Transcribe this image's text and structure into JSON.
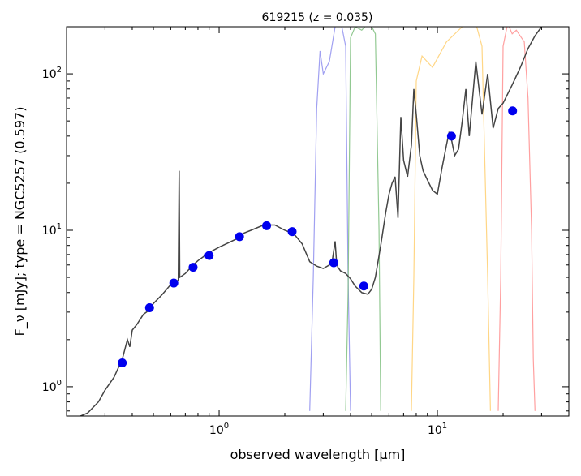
{
  "chart_data": {
    "type": "line",
    "title": "619215 (z = 0.035)",
    "xlabel": "observed wavelength [μm]",
    "ylabel": "F_ν [mJy];  type = NGC5257 (0.597)",
    "xscale": "log",
    "yscale": "log",
    "xlim": [
      0.2,
      40
    ],
    "ylim": [
      0.65,
      200
    ],
    "x_ticks": [
      {
        "value": 1,
        "label": "10^0"
      },
      {
        "value": 10,
        "label": "10^1"
      }
    ],
    "y_ticks": [
      {
        "value": 1,
        "label": "10^0"
      },
      {
        "value": 10,
        "label": "10^1"
      },
      {
        "value": 100,
        "label": "10^2"
      }
    ],
    "grid": false,
    "colors": {
      "sed": "#444444",
      "photometry": "#0000ee",
      "filter_blue": "#8888ee",
      "filter_green": "#77bb77",
      "filter_orange": "#ffcc66",
      "filter_red": "#ff8888"
    },
    "sed_template": {
      "x": [
        0.2,
        0.22,
        0.25,
        0.28,
        0.3,
        0.33,
        0.36,
        0.38,
        0.39,
        0.4,
        0.42,
        0.45,
        0.48,
        0.5,
        0.55,
        0.6,
        0.65,
        0.656,
        0.66,
        0.7,
        0.75,
        0.8,
        0.9,
        1.0,
        1.1,
        1.2,
        1.3,
        1.4,
        1.6,
        1.8,
        2.0,
        2.2,
        2.4,
        2.6,
        2.8,
        3.0,
        3.2,
        3.3,
        3.4,
        3.45,
        3.5,
        3.6,
        3.8,
        4.0,
        4.2,
        4.5,
        4.8,
        5.0,
        5.2,
        5.5,
        5.8,
        6.0,
        6.2,
        6.4,
        6.6,
        6.8,
        7.0,
        7.3,
        7.6,
        7.8,
        8.0,
        8.3,
        8.6,
        9.0,
        9.5,
        10.0,
        10.5,
        11.0,
        11.3,
        11.6,
        12.0,
        12.5,
        13.0,
        13.5,
        14.0,
        15.0,
        16.0,
        17.0,
        18.0,
        19.0,
        20.0,
        22.0,
        24.0,
        26.0,
        28.0,
        30.0
      ],
      "y": [
        0.62,
        0.63,
        0.68,
        0.8,
        0.95,
        1.15,
        1.5,
        2.0,
        1.8,
        2.3,
        2.5,
        2.9,
        3.1,
        3.4,
        3.9,
        4.5,
        4.8,
        24.0,
        5.0,
        5.3,
        5.9,
        6.4,
        7.2,
        7.8,
        8.3,
        8.8,
        9.6,
        10.0,
        10.8,
        10.8,
        10.0,
        9.5,
        8.2,
        6.3,
        5.9,
        5.7,
        6.0,
        6.4,
        8.5,
        6.3,
        5.8,
        5.5,
        5.3,
        4.9,
        4.4,
        4.0,
        3.9,
        4.2,
        5.0,
        8.0,
        13.0,
        17.0,
        20.0,
        22.0,
        12.0,
        53.0,
        28.0,
        22.0,
        35.0,
        80.0,
        55.0,
        30.0,
        24.0,
        21.0,
        18.0,
        17.0,
        25.0,
        35.0,
        42.0,
        38.0,
        30.0,
        33.0,
        50.0,
        80.0,
        40.0,
        120.0,
        55.0,
        100.0,
        45.0,
        60.0,
        65.0,
        85.0,
        110.0,
        145.0,
        175.0,
        200.0
      ]
    },
    "photometry": {
      "x": [
        0.36,
        0.48,
        0.62,
        0.76,
        0.9,
        1.24,
        1.65,
        2.16,
        3.35,
        4.6,
        11.6,
        22.1
      ],
      "y": [
        1.42,
        3.2,
        4.6,
        5.8,
        6.9,
        9.1,
        10.7,
        9.8,
        6.2,
        4.4,
        40.0,
        58.0
      ]
    },
    "filters": [
      {
        "color": "blue",
        "x": [
          2.6,
          2.7,
          2.8,
          2.9,
          3.0,
          3.2,
          3.4,
          3.6,
          3.8,
          3.9,
          4.0
        ],
        "y": [
          0.7,
          5.0,
          60.0,
          140.0,
          100.0,
          120.0,
          200.0,
          220.0,
          150.0,
          5.0,
          0.7
        ]
      },
      {
        "color": "green",
        "x": [
          3.8,
          3.9,
          4.0,
          4.2,
          4.5,
          4.8,
          5.0,
          5.2,
          5.4,
          5.5
        ],
        "y": [
          0.7,
          4.0,
          170.0,
          200.0,
          190.0,
          210.0,
          200.0,
          180.0,
          10.0,
          0.7
        ]
      },
      {
        "color": "orange",
        "x": [
          7.6,
          7.8,
          8.0,
          8.5,
          9.5,
          11.0,
          13.0,
          15.0,
          16.0,
          17.0,
          17.5
        ],
        "y": [
          0.7,
          5.0,
          90.0,
          130.0,
          110.0,
          160.0,
          200.0,
          210.0,
          150.0,
          5.0,
          0.7
        ]
      },
      {
        "color": "red",
        "x": [
          19.0,
          19.5,
          20.0,
          21.0,
          22.0,
          23.0,
          25.0,
          26.0,
          27.0,
          27.5,
          28.0
        ],
        "y": [
          0.7,
          5.0,
          150.0,
          210.0,
          180.0,
          190.0,
          160.0,
          70.0,
          10.0,
          1.5,
          0.7
        ]
      }
    ]
  }
}
